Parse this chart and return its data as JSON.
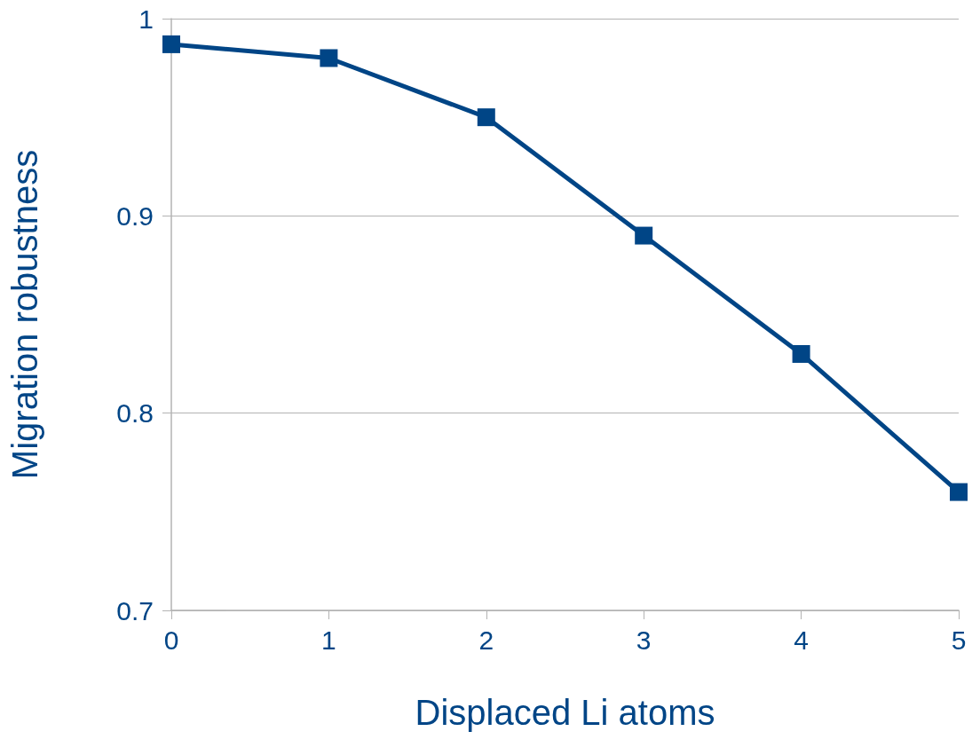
{
  "chart_data": {
    "type": "line",
    "xlabel": "Displaced Li atoms",
    "ylabel": "Migration robustness",
    "x": [
      0,
      1,
      2,
      3,
      4,
      5
    ],
    "series": [
      {
        "color": "#004586",
        "values": [
          0.987,
          0.98,
          0.95,
          0.89,
          0.83,
          0.76
        ]
      }
    ],
    "xlim": [
      0,
      5
    ],
    "xticks": [
      0,
      1,
      2,
      3,
      4,
      5
    ],
    "ylim": [
      0.7,
      1
    ],
    "yticks": [
      {
        "value": 0.7,
        "label": "0.7"
      },
      {
        "value": 0.8,
        "label": "0.8"
      },
      {
        "value": 0.9,
        "label": "0.9"
      },
      {
        "value": 1,
        "label": "1"
      }
    ],
    "grid": "y",
    "marker": "square",
    "line_style": "solid"
  }
}
